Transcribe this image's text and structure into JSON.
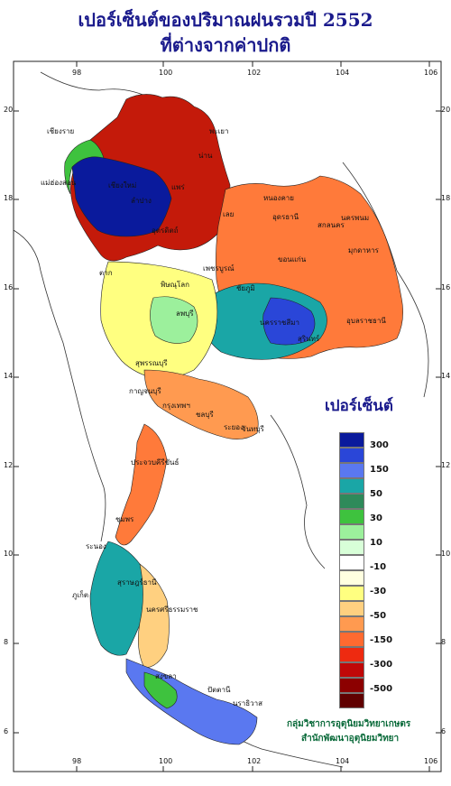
{
  "title": {
    "line1": "เปอร์เซ็นต์ของปริมาณฝนรวมปี 2552",
    "line2": "ที่ต่างจากค่าปกติ"
  },
  "axes": {
    "longitude_ticks": [
      "98",
      "100",
      "102",
      "104",
      "106"
    ],
    "latitude_ticks": [
      "20",
      "18",
      "16",
      "14",
      "12",
      "10",
      "8",
      "6"
    ]
  },
  "legend": {
    "title": "เปอร์เซ็นต์",
    "labels": [
      "300",
      "150",
      "50",
      "30",
      "10",
      "-10",
      "-30",
      "-50",
      "-150",
      "-300",
      "-500"
    ],
    "colors": [
      "#0a1a9c",
      "#2a46d8",
      "#5a78f0",
      "#1aa6a6",
      "#2e8a5a",
      "#3ec23e",
      "#9cf09c",
      "#d8ffd8",
      "#ffffff",
      "#ffffe0",
      "#ffff80",
      "#ffd080",
      "#ff9a50",
      "#ff6a30",
      "#ee2a10",
      "#c00808",
      "#8c0000",
      "#600000"
    ]
  },
  "places": [
    "เชียงใหม่",
    "ลำปาง",
    "น่าน",
    "แพร่",
    "อุตรดิตถ์",
    "ตาก",
    "พิษณุโลก",
    "เพชรบูรณ์",
    "เลย",
    "หนองคาย",
    "อุดรธานี",
    "สกลนคร",
    "นครพนม",
    "มุกดาหาร",
    "ขอนแก่น",
    "ชัยภูมิ",
    "นครราชสีมา",
    "สุรินทร์",
    "อุบลราชธานี",
    "ลพบุรี",
    "สุพรรณบุรี",
    "กาญจนบุรี",
    "กรุงเทพฯ",
    "ชลบุรี",
    "ระยอง",
    "จันทบุรี",
    "ประจวบคีรีขันธ์",
    "ชุมพร",
    "ระนอง",
    "สุราษฎร์ธานี",
    "นครศรีธรรมราช",
    "ภูเก็ต",
    "สงขลา",
    "ปัตตานี",
    "นราธิวาส",
    "แม่ฮ่องสอน",
    "เชียงราย",
    "พะเยา"
  ],
  "credit": {
    "line1": "กลุ่มวิชาการอุตุนิยมวิทยาเกษตร",
    "line2": "สำนักพัฒนาอุตุนิยมวิทยา"
  }
}
